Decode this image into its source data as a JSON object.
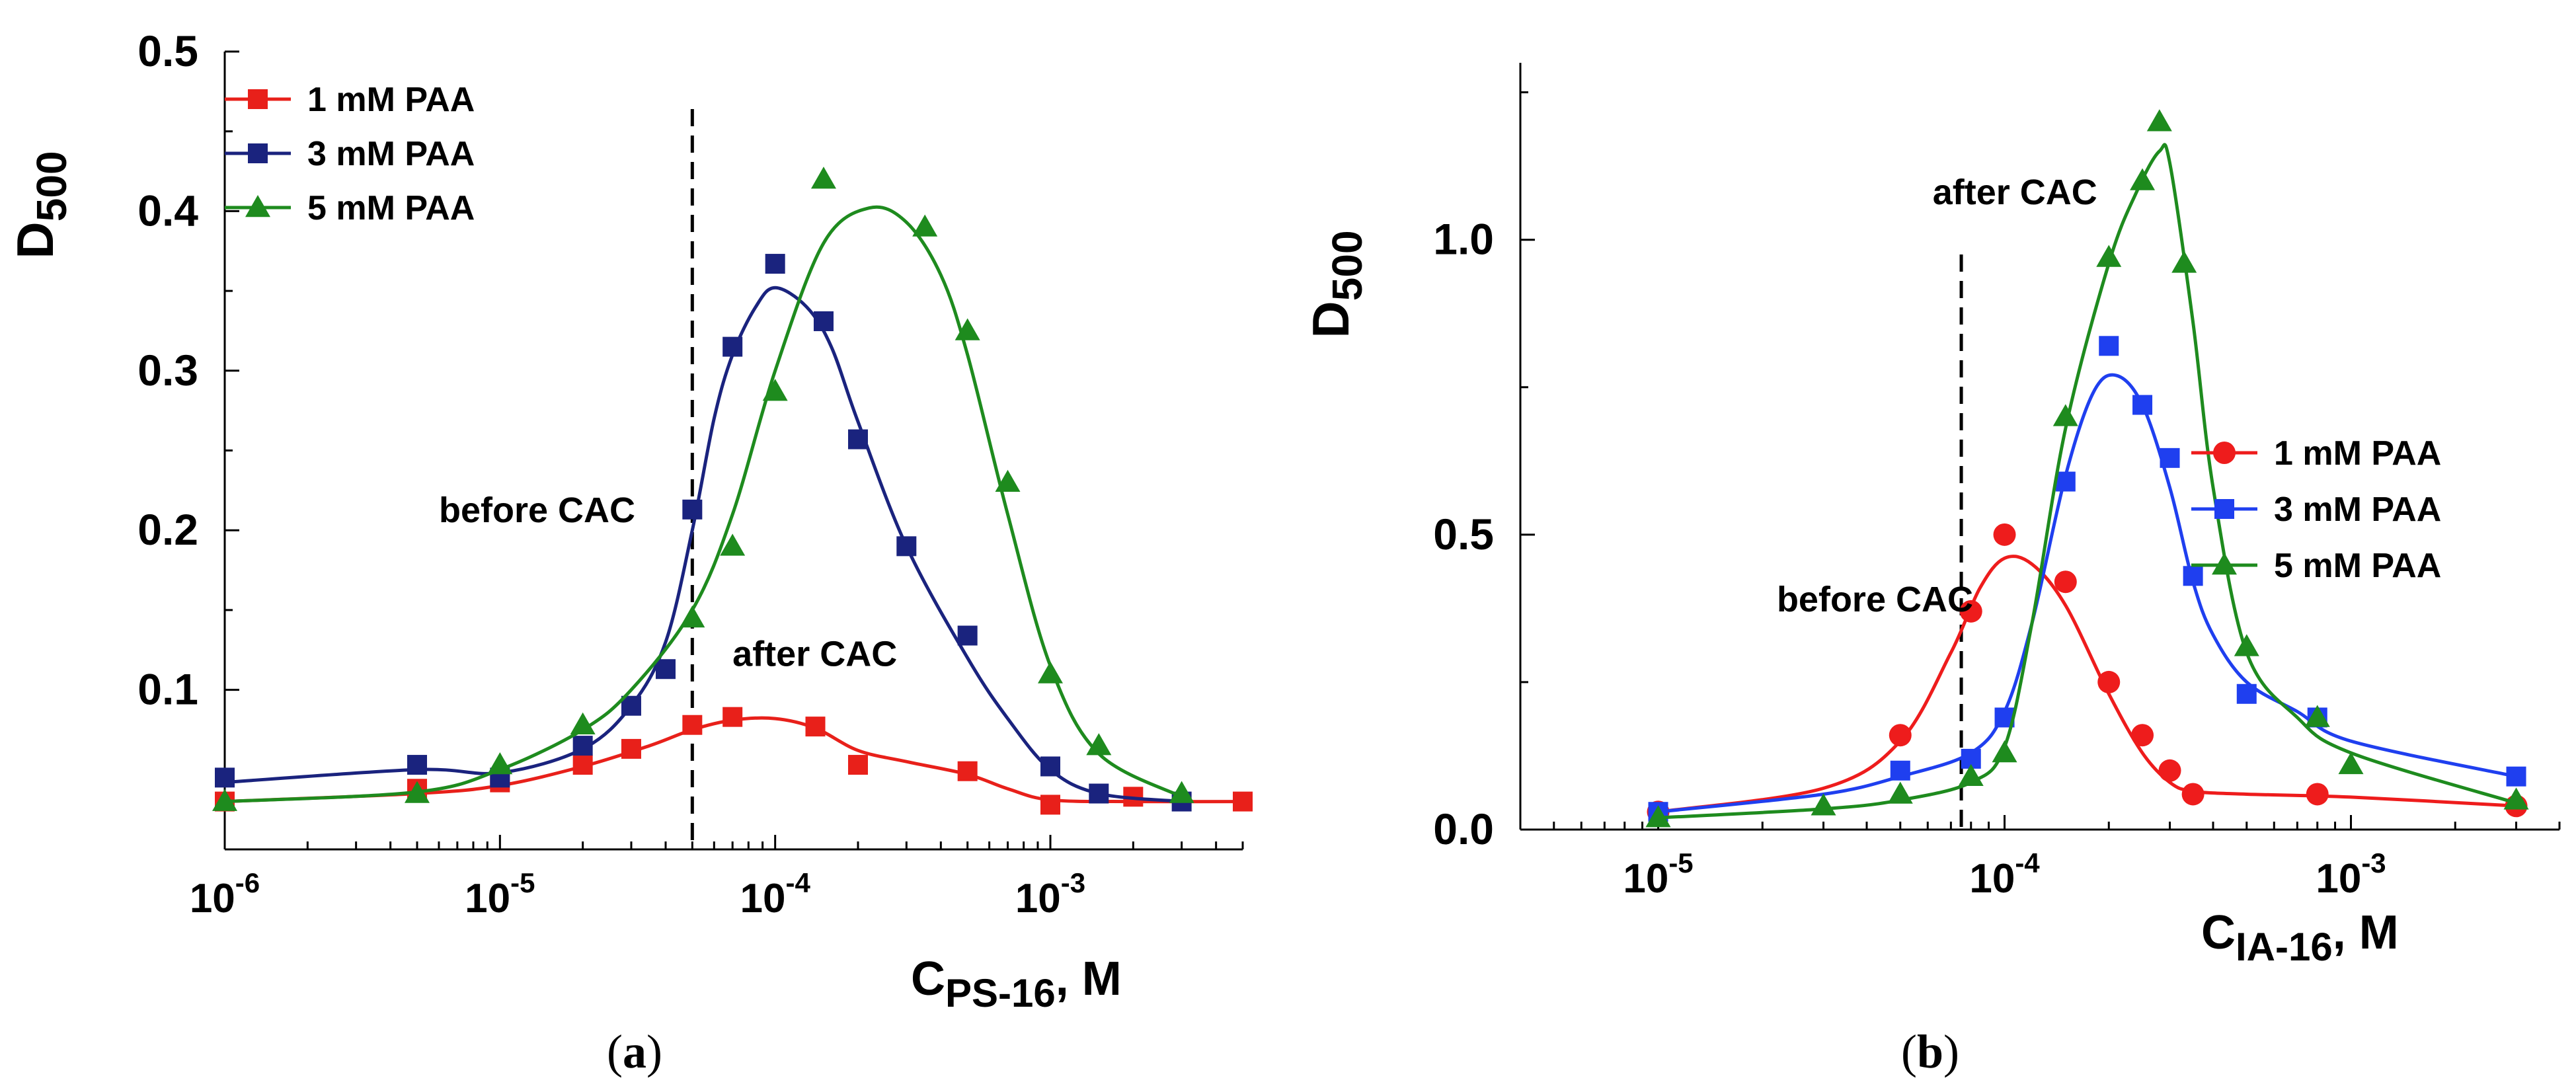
{
  "chart_data": [
    {
      "id": "a",
      "type": "scatter",
      "caption_open": "(",
      "caption_letter": "a",
      "caption_close": ")",
      "xscale": "log",
      "xlim": [
        1e-06,
        0.005
      ],
      "ylim": [
        0,
        0.5
      ],
      "ylabel_main": "D",
      "ylabel_sub": "500",
      "xlabel_main": "C",
      "xlabel_sub": "PS-16",
      "xlabel_suffix": ", M",
      "xticks": [
        {
          "value": 1e-06,
          "base": "10",
          "exp": "-6"
        },
        {
          "value": 1e-05,
          "base": "10",
          "exp": "-5"
        },
        {
          "value": 0.0001,
          "base": "10",
          "exp": "-4"
        },
        {
          "value": 0.001,
          "base": "10",
          "exp": "-3"
        }
      ],
      "yticks": [
        {
          "value": 0.1,
          "label": "0.1"
        },
        {
          "value": 0.2,
          "label": "0.2"
        },
        {
          "value": 0.3,
          "label": "0.3"
        },
        {
          "value": 0.4,
          "label": "0.4"
        },
        {
          "value": 0.5,
          "label": "0.5"
        }
      ],
      "vline": 5e-05,
      "annotations": [
        {
          "name": "before-cac-label",
          "text": "before CAC",
          "x": 6e-06,
          "y": 0.205
        },
        {
          "name": "after-cac-label",
          "text": "after CAC",
          "x": 7e-05,
          "y": 0.115
        }
      ],
      "legend_position": "top-left",
      "series": [
        {
          "name": "1 mM PAA",
          "color": "#e8201a",
          "marker": "square",
          "x": [
            1e-06,
            5e-06,
            1e-05,
            2e-05,
            3e-05,
            5e-05,
            7e-05,
            0.00014,
            0.0002,
            0.0005,
            0.001,
            0.002,
            0.005
          ],
          "y": [
            0.03,
            0.038,
            0.042,
            0.053,
            0.063,
            0.078,
            0.083,
            0.077,
            0.053,
            0.049,
            0.028,
            0.033,
            0.03
          ],
          "curve_x": [
            1e-06,
            5e-06,
            1e-05,
            2e-05,
            3.5e-05,
            5e-05,
            7e-05,
            0.0001,
            0.00014,
            0.0002,
            0.0003,
            0.0005,
            0.0007,
            0.001,
            0.002,
            0.005
          ],
          "curve_y": [
            0.03,
            0.035,
            0.04,
            0.052,
            0.065,
            0.075,
            0.081,
            0.082,
            0.076,
            0.062,
            0.055,
            0.047,
            0.038,
            0.031,
            0.03,
            0.03
          ]
        },
        {
          "name": "3 mM PAA",
          "color": "#1a237e",
          "marker": "square",
          "x": [
            1e-06,
            5e-06,
            1e-05,
            2e-05,
            3e-05,
            4e-05,
            5e-05,
            7e-05,
            0.0001,
            0.00015,
            0.0002,
            0.0003,
            0.0005,
            0.001,
            0.0015,
            0.003
          ],
          "y": [
            0.045,
            0.053,
            0.045,
            0.065,
            0.09,
            0.113,
            0.213,
            0.315,
            0.367,
            0.331,
            0.257,
            0.19,
            0.134,
            0.052,
            0.035,
            0.03
          ],
          "curve_x": [
            1e-06,
            5e-06,
            1e-05,
            2e-05,
            3e-05,
            4e-05,
            5e-05,
            6e-05,
            7e-05,
            8.5e-05,
            0.0001,
            0.00013,
            0.00016,
            0.0002,
            0.0003,
            0.0005,
            0.0007,
            0.001,
            0.0015,
            0.003
          ],
          "curve_y": [
            0.042,
            0.05,
            0.048,
            0.063,
            0.09,
            0.13,
            0.2,
            0.27,
            0.31,
            0.34,
            0.352,
            0.34,
            0.315,
            0.268,
            0.19,
            0.12,
            0.082,
            0.05,
            0.035,
            0.03
          ]
        },
        {
          "name": "5 mM PAA",
          "color": "#1e8b1e",
          "marker": "triangle",
          "x": [
            1e-06,
            5e-06,
            1e-05,
            2e-05,
            5e-05,
            7e-05,
            0.0001,
            0.00015,
            0.00035,
            0.0005,
            0.0007,
            0.001,
            0.0015,
            0.003
          ],
          "y": [
            0.03,
            0.035,
            0.053,
            0.078,
            0.145,
            0.19,
            0.287,
            0.42,
            0.39,
            0.325,
            0.23,
            0.11,
            0.065,
            0.035
          ],
          "curve_x": [
            1e-06,
            5e-06,
            1e-05,
            2e-05,
            3e-05,
            5e-05,
            7e-05,
            0.0001,
            0.00015,
            0.00022,
            0.0003,
            0.0004,
            0.0005,
            0.0007,
            0.001,
            0.0015,
            0.003
          ],
          "curve_y": [
            0.03,
            0.036,
            0.05,
            0.075,
            0.1,
            0.15,
            0.21,
            0.3,
            0.38,
            0.402,
            0.393,
            0.36,
            0.31,
            0.21,
            0.115,
            0.06,
            0.033
          ]
        }
      ]
    },
    {
      "id": "b",
      "type": "scatter",
      "caption_open": "(",
      "caption_letter": "b",
      "caption_close": ")",
      "xscale": "log",
      "xlim": [
        4e-06,
        0.004
      ],
      "ylim": [
        0,
        1.3
      ],
      "ylabel_main": "D",
      "ylabel_sub": "500",
      "xlabel_main": "C",
      "xlabel_sub": "IA-16",
      "xlabel_suffix": ", M",
      "xticks": [
        {
          "value": 1e-05,
          "base": "10",
          "exp": "-5"
        },
        {
          "value": 0.0001,
          "base": "10",
          "exp": "-4"
        },
        {
          "value": 0.001,
          "base": "10",
          "exp": "-3"
        }
      ],
      "yticks": [
        {
          "value": 0.0,
          "label": "0.0"
        },
        {
          "value": 0.5,
          "label": "0.5"
        },
        {
          "value": 1.0,
          "label": "1.0"
        }
      ],
      "vline": 7.5e-05,
      "annotations": [
        {
          "name": "after-cac-label",
          "text": "after CAC",
          "x": 6.2e-05,
          "y": 1.06
        },
        {
          "name": "before-cac-label",
          "text": "before CAC",
          "x": 2.2e-05,
          "y": 0.37
        }
      ],
      "legend_position": "right",
      "series": [
        {
          "name": "1 mM PAA",
          "color": "#ee1c1c",
          "marker": "circle",
          "x": [
            1e-05,
            5e-05,
            8e-05,
            0.0001,
            0.00015,
            0.0002,
            0.00025,
            0.0003,
            0.00035,
            0.0008,
            0.003
          ],
          "y": [
            0.03,
            0.16,
            0.37,
            0.5,
            0.42,
            0.25,
            0.16,
            0.1,
            0.06,
            0.06,
            0.04
          ],
          "curve_x": [
            1e-05,
            3e-05,
            5e-05,
            7e-05,
            8.5e-05,
            0.0001,
            0.00012,
            0.00015,
            0.0002,
            0.00025,
            0.0003,
            0.00035,
            0.0005,
            0.001,
            0.003
          ],
          "curve_y": [
            0.03,
            0.07,
            0.15,
            0.3,
            0.41,
            0.46,
            0.45,
            0.38,
            0.23,
            0.13,
            0.08,
            0.065,
            0.06,
            0.055,
            0.04
          ]
        },
        {
          "name": "3 mM PAA",
          "color": "#1f3fef",
          "marker": "square",
          "x": [
            1e-05,
            5e-05,
            8e-05,
            0.0001,
            0.00015,
            0.0002,
            0.00025,
            0.0003,
            0.00035,
            0.0005,
            0.0008,
            0.003
          ],
          "y": [
            0.03,
            0.1,
            0.12,
            0.19,
            0.59,
            0.82,
            0.72,
            0.63,
            0.43,
            0.23,
            0.19,
            0.09
          ],
          "curve_x": [
            1e-05,
            3e-05,
            5e-05,
            8e-05,
            0.0001,
            0.00012,
            0.00015,
            0.00018,
            0.00021,
            0.00025,
            0.0003,
            0.00035,
            0.0004,
            0.0005,
            0.0007,
            0.001,
            0.003
          ],
          "curve_y": [
            0.03,
            0.06,
            0.09,
            0.13,
            0.2,
            0.35,
            0.6,
            0.74,
            0.77,
            0.72,
            0.58,
            0.42,
            0.33,
            0.25,
            0.2,
            0.15,
            0.09
          ]
        },
        {
          "name": "5 mM PAA",
          "color": "#1e8b1e",
          "marker": "triangle",
          "x": [
            1e-05,
            3e-05,
            5e-05,
            8e-05,
            0.0001,
            0.00015,
            0.0002,
            0.00025,
            0.00028,
            0.00033,
            0.0005,
            0.0008,
            0.001,
            0.003
          ],
          "y": [
            0.02,
            0.04,
            0.06,
            0.09,
            0.13,
            0.7,
            0.97,
            1.1,
            1.2,
            0.96,
            0.31,
            0.19,
            0.11,
            0.05
          ],
          "curve_x": [
            1e-05,
            3e-05,
            5e-05,
            8e-05,
            0.0001,
            0.00012,
            0.00015,
            0.0002,
            0.00024,
            0.00028,
            0.0003,
            0.00035,
            0.0004,
            0.0005,
            0.0007,
            0.001,
            0.003
          ],
          "curve_y": [
            0.02,
            0.035,
            0.05,
            0.08,
            0.14,
            0.35,
            0.68,
            0.96,
            1.08,
            1.15,
            1.13,
            0.86,
            0.58,
            0.3,
            0.19,
            0.13,
            0.045
          ]
        }
      ]
    }
  ]
}
